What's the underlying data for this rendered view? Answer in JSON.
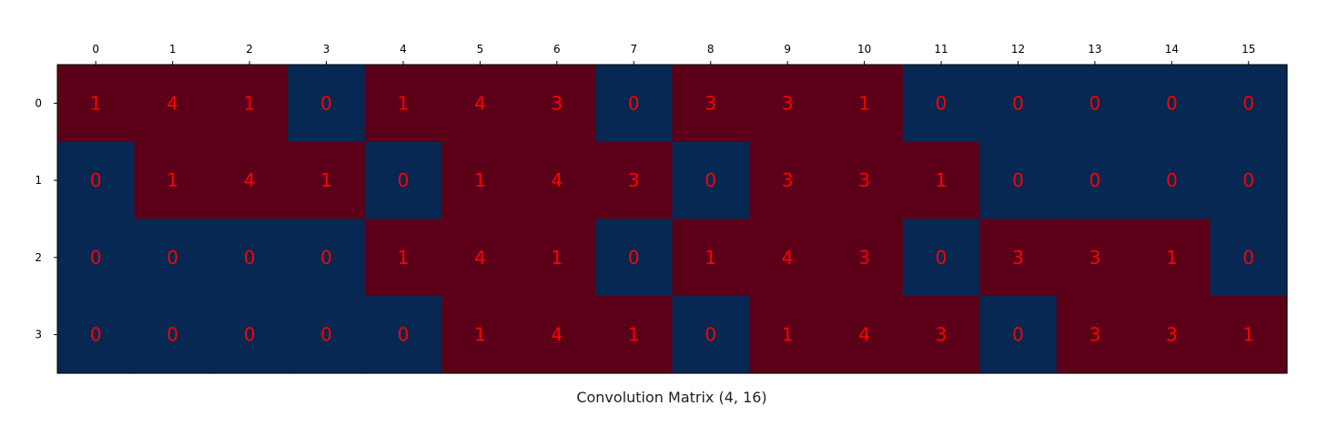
{
  "chart_data": {
    "type": "heatmap",
    "xlabel": "Convolution Matrix (4, 16)",
    "x_ticks": [
      "0",
      "1",
      "2",
      "3",
      "4",
      "5",
      "6",
      "7",
      "8",
      "9",
      "10",
      "11",
      "12",
      "13",
      "14",
      "15"
    ],
    "y_ticks": [
      "0",
      "1",
      "2",
      "3"
    ],
    "x_tick_position": "top",
    "grid": false,
    "colors": {
      "zero": "#062852",
      "nonzero": "#5c0019",
      "text": "#ff0000"
    },
    "values": [
      [
        1,
        4,
        1,
        0,
        1,
        4,
        3,
        0,
        3,
        3,
        1,
        0,
        0,
        0,
        0,
        0
      ],
      [
        0,
        1,
        4,
        1,
        0,
        1,
        4,
        3,
        0,
        3,
        3,
        1,
        0,
        0,
        0,
        0
      ],
      [
        0,
        0,
        0,
        0,
        1,
        4,
        1,
        0,
        1,
        4,
        3,
        0,
        3,
        3,
        1,
        0
      ],
      [
        0,
        0,
        0,
        0,
        0,
        1,
        4,
        1,
        0,
        1,
        4,
        3,
        0,
        3,
        3,
        1
      ]
    ]
  }
}
